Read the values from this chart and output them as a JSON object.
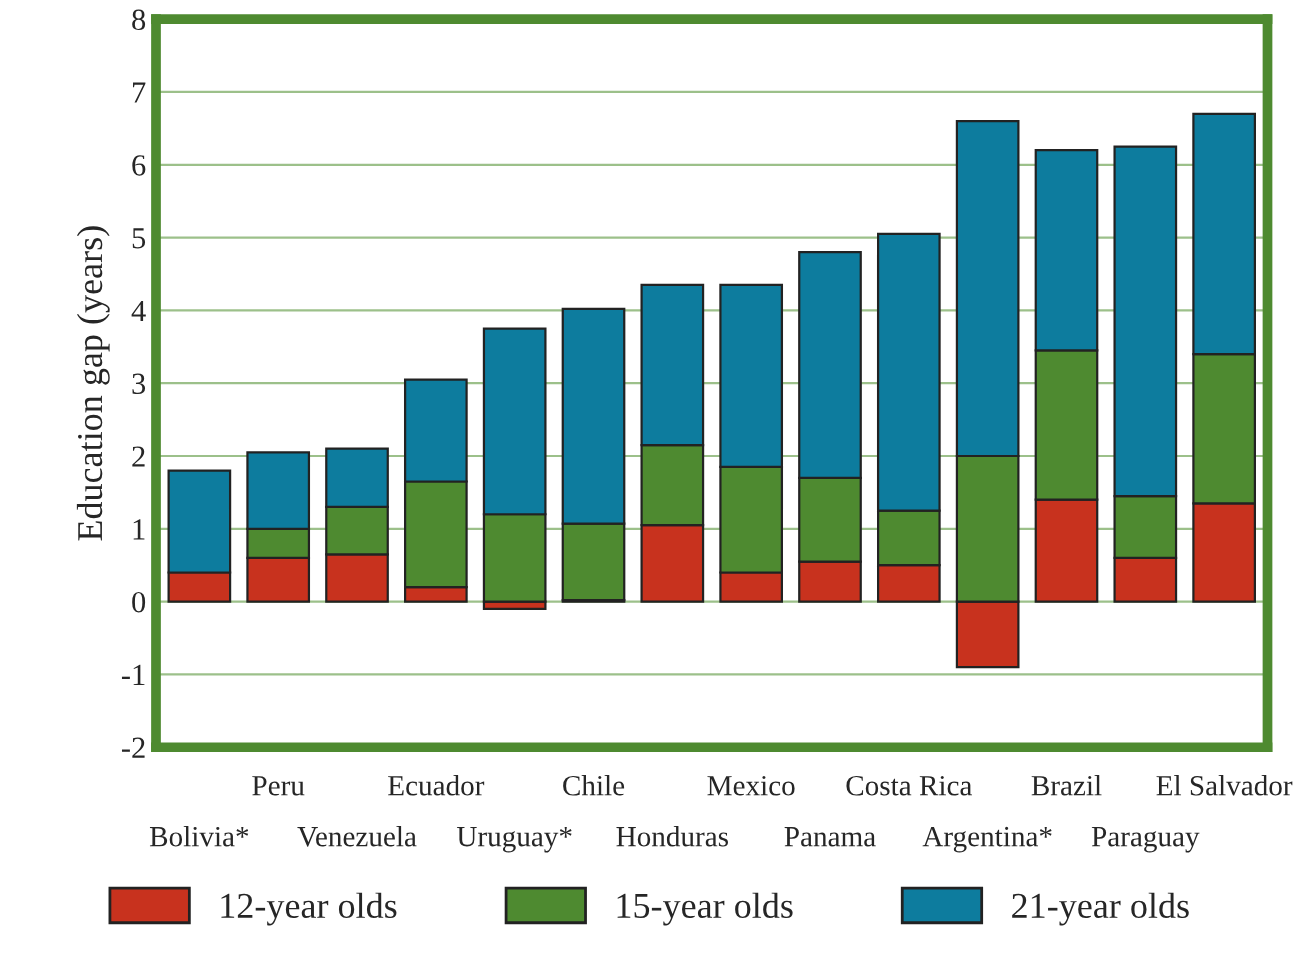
{
  "chart_data": {
    "type": "bar",
    "stacked": true,
    "ylabel": "Education gap (years)",
    "categories": [
      "Bolivia*",
      "Peru",
      "Venezuela",
      "Ecuador",
      "Uruguay*",
      "Chile",
      "Honduras",
      "Mexico",
      "Panama",
      "Costa Rica",
      "Argentina*",
      "Brazil",
      "Paraguay",
      "El Salvador"
    ],
    "series": [
      {
        "name": "12-year olds",
        "color": "#c8321e",
        "values": [
          0.4,
          0.6,
          0.65,
          0.2,
          -0.1,
          0.02,
          1.05,
          0.4,
          0.55,
          0.5,
          -0.9,
          1.4,
          0.6,
          1.35
        ]
      },
      {
        "name": "15-year olds",
        "color": "#4e8a30",
        "values": [
          null,
          0.4,
          0.65,
          1.45,
          1.2,
          1.05,
          1.1,
          1.45,
          1.15,
          0.75,
          2.0,
          2.05,
          0.85,
          2.05
        ]
      },
      {
        "name": "21-year olds",
        "color": "#0d7c9e",
        "values": [
          1.4,
          1.05,
          0.8,
          1.4,
          2.55,
          2.95,
          2.2,
          2.5,
          3.1,
          3.8,
          4.6,
          2.75,
          4.8,
          3.3
        ]
      }
    ],
    "ylim": [
      -2,
      8
    ],
    "yticks": [
      -2,
      -1,
      0,
      1,
      2,
      3,
      4,
      5,
      6,
      7,
      8
    ],
    "grid": "y",
    "legend": "bottom"
  }
}
